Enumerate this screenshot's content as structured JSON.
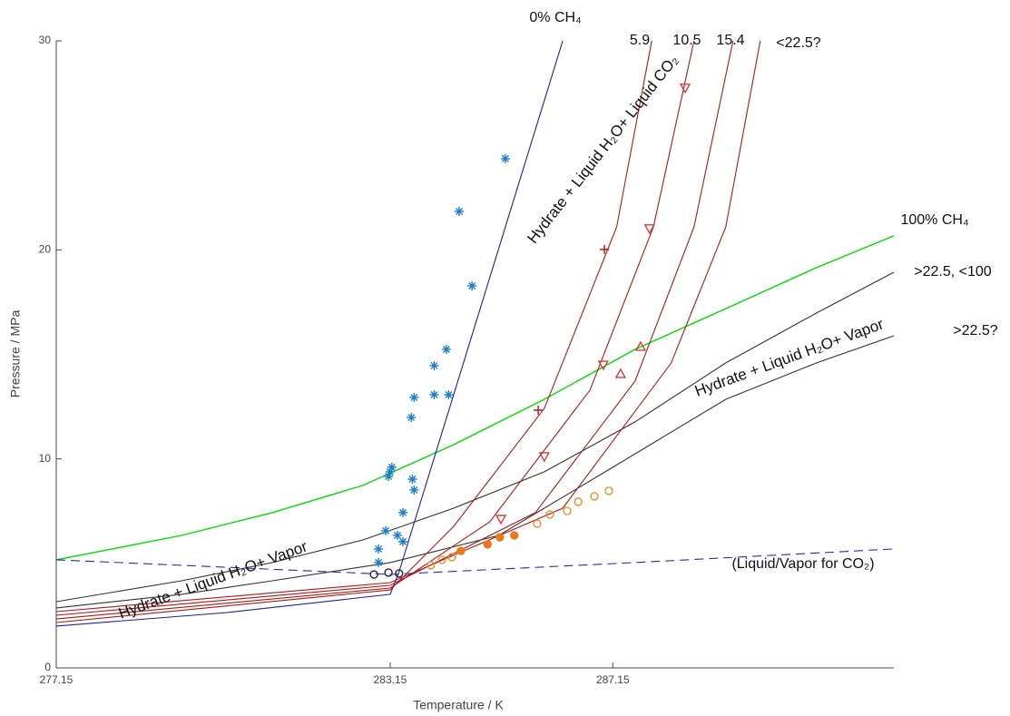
{
  "chart_data": {
    "type": "line",
    "x_label": "Temperature / K",
    "y_label": "Pressure / MPa",
    "xlim": [
      277.15,
      292.2
    ],
    "ylim": [
      0,
      30
    ],
    "xticks": [
      277.15,
      283.15,
      287.15
    ],
    "yticks": [
      0,
      10,
      20,
      30
    ],
    "lines": [
      {
        "color": "#00dd00",
        "dashed": false,
        "x": [
          277.15,
          279.4,
          281.03,
          282.66,
          284.29,
          285.92,
          287.55,
          289.18,
          290.81,
          292.2
        ],
        "y": [
          5.17,
          6.34,
          7.43,
          8.73,
          10.68,
          12.85,
          15.24,
          17.19,
          19.15,
          20.67
        ]
      },
      {
        "color": "#333333",
        "dashed": false,
        "x": [
          277.15,
          279.4,
          281.03,
          282.66,
          284.29,
          285.92,
          287.55,
          289.18,
          290.81,
          292.2
        ],
        "y": [
          3.17,
          4.17,
          5.04,
          6.12,
          7.64,
          9.38,
          11.77,
          14.59,
          16.98,
          18.93
        ]
      },
      {
        "color": "#333333",
        "dashed": false,
        "x": [
          277.15,
          279.4,
          281.03,
          283.15,
          285.1,
          287.15,
          289.18,
          290.81,
          292.2
        ],
        "y": [
          2.87,
          3.52,
          4.17,
          5.04,
          6.34,
          9.6,
          12.85,
          14.59,
          15.89
        ]
      },
      {
        "color": "#1f1fa8",
        "dashed": false,
        "x": [
          277.15,
          280.22,
          283.15,
          283.31,
          286.25
        ],
        "y": [
          2.0,
          2.65,
          3.52,
          4.6,
          30
        ]
      },
      {
        "color": "#b01818",
        "dashed": false,
        "x": [
          277.15,
          283.15,
          284.29,
          285.92,
          287.22,
          287.85
        ],
        "y": [
          2.17,
          3.73,
          6.77,
          12.42,
          21.1,
          30
        ]
      },
      {
        "color": "#b01818",
        "dashed": false,
        "x": [
          277.15,
          283.15,
          284.94,
          286.74,
          287.88,
          288.61
        ],
        "y": [
          2.34,
          3.82,
          6.99,
          13.29,
          21.1,
          30
        ]
      },
      {
        "color": "#b01818",
        "dashed": false,
        "x": [
          277.15,
          283.15,
          285.76,
          287.55,
          288.61,
          289.31
        ],
        "y": [
          2.52,
          3.95,
          7.43,
          13.72,
          21.1,
          30
        ]
      },
      {
        "color": "#b01818",
        "dashed": false,
        "x": [
          277.15,
          283.15,
          286.25,
          288.2,
          289.18,
          289.8
        ],
        "y": [
          2.69,
          4.08,
          7.64,
          14.59,
          21.1,
          30
        ]
      },
      {
        "color": "#2a2ab0",
        "dashed": true,
        "x": [
          277.15,
          283.15,
          287.55,
          292.2
        ],
        "y": [
          5.17,
          4.47,
          5.04,
          5.69
        ]
      }
    ],
    "scatter": [
      {
        "marker": "asterisk",
        "color": "#1a7fc8",
        "x": [
          285.22,
          284.39,
          284.62,
          284.16,
          283.94,
          283.94,
          284.2,
          283.58,
          283.53,
          283.55,
          283.58,
          283.18,
          283.15,
          283.12,
          283.38,
          283.07,
          283.28,
          283.38,
          282.94,
          282.94
        ],
        "y": [
          24.36,
          21.84,
          18.28,
          15.24,
          14.46,
          13.07,
          13.07,
          12.94,
          11.98,
          9.03,
          8.51,
          9.6,
          9.38,
          9.16,
          7.43,
          6.56,
          6.34,
          6.04,
          5.69,
          5.04
        ]
      },
      {
        "marker": "triangle-down",
        "color": "#d04040",
        "x": [
          288.45,
          287.81,
          286.98,
          285.92,
          285.14
        ],
        "y": [
          27.75,
          21.02,
          14.5,
          10.12,
          7.12
        ]
      },
      {
        "marker": "triangle-up",
        "color": "#d04040",
        "x": [
          287.65,
          287.29
        ],
        "y": [
          15.37,
          14.07
        ]
      },
      {
        "marker": "plus",
        "color": "#b01818",
        "x": [
          287.0,
          285.81
        ],
        "y": [
          20.02,
          12.33
        ]
      },
      {
        "marker": "circle-open",
        "color": "#e8902a",
        "x": [
          287.08,
          286.82,
          286.53,
          286.33,
          286.02,
          285.79,
          284.26,
          284.08,
          283.88
        ],
        "y": [
          8.47,
          8.21,
          7.95,
          7.51,
          7.34,
          6.9,
          5.3,
          5.17,
          4.91
        ]
      },
      {
        "marker": "circle-filled",
        "color": "#e87a1a",
        "x": [
          285.38,
          285.12,
          284.9,
          284.42
        ],
        "y": [
          6.34,
          6.25,
          5.91,
          5.6
        ]
      },
      {
        "marker": "circle-open",
        "color": "#222244",
        "x": [
          282.86,
          283.12,
          283.31
        ],
        "y": [
          4.47,
          4.56,
          4.52
        ]
      }
    ],
    "annotations": [
      "0% CH₄",
      "5.9",
      "10.5",
      "15.4",
      "<22.5?",
      "100% CH₄",
      ">22.5, <100",
      ">22.5?",
      "(Liquid/Vapor for CO₂)",
      "Hydrate + Liquid H₂O+ Liquid CO₂",
      "Hydrate + Liquid H₂O+ Vapor",
      "Hydrate + Liquid H₂O+ Vapor"
    ]
  }
}
